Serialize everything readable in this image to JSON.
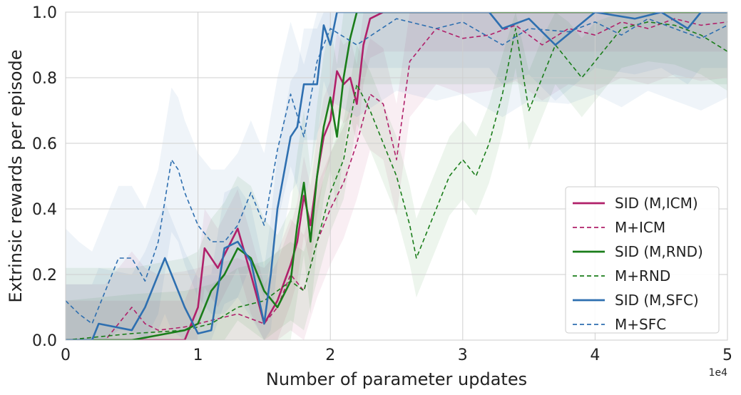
{
  "chart_data": {
    "type": "line",
    "xlabel": "Number of parameter updates",
    "ylabel": "Extrinsic rewards per episode",
    "x_offset_label": "1e4",
    "xlim": [
      0,
      5
    ],
    "ylim": [
      0,
      1.0
    ],
    "xticks": [
      "0",
      "1",
      "2",
      "3",
      "4",
      "5"
    ],
    "yticks": [
      "0.0",
      "0.2",
      "0.4",
      "0.6",
      "0.8",
      "1.0"
    ],
    "grid": true,
    "legend_position": "lower-right",
    "series": [
      {
        "name": "SID (M,ICM)",
        "color": "#b0206a",
        "dash": "solid",
        "x": [
          0,
          0.5,
          0.9,
          1.0,
          1.05,
          1.15,
          1.25,
          1.3,
          1.4,
          1.5,
          1.6,
          1.7,
          1.75,
          1.8,
          1.85,
          1.9,
          1.95,
          2.0,
          2.05,
          2.1,
          2.15,
          2.2,
          2.25,
          2.3,
          2.4,
          5.0
        ],
        "y": [
          0,
          0,
          0,
          0.1,
          0.28,
          0.22,
          0.3,
          0.34,
          0.2,
          0.05,
          0.12,
          0.23,
          0.3,
          0.44,
          0.35,
          0.5,
          0.62,
          0.67,
          0.82,
          0.78,
          0.8,
          0.72,
          0.9,
          0.98,
          1.0,
          1.0
        ]
      },
      {
        "name": "M+ICM",
        "color": "#b0206a",
        "dash": "dashed",
        "x": [
          0,
          0.3,
          0.5,
          0.6,
          0.7,
          0.9,
          1.1,
          1.3,
          1.5,
          1.6,
          1.7,
          1.8,
          1.9,
          2.0,
          2.1,
          2.2,
          2.3,
          2.4,
          2.5,
          2.6,
          2.7,
          2.8,
          3.0,
          3.2,
          3.4,
          3.6,
          3.8,
          4.0,
          4.2,
          4.4,
          4.6,
          4.8,
          5.0
        ],
        "y": [
          0,
          0,
          0.1,
          0.05,
          0.03,
          0.04,
          0.06,
          0.08,
          0.05,
          0.1,
          0.2,
          0.15,
          0.3,
          0.4,
          0.48,
          0.6,
          0.75,
          0.72,
          0.55,
          0.85,
          0.9,
          0.95,
          0.92,
          0.93,
          0.96,
          0.9,
          0.95,
          0.93,
          0.97,
          0.95,
          0.98,
          0.96,
          0.97
        ]
      },
      {
        "name": "SID (M,RND)",
        "color": "#1a7d1a",
        "dash": "solid",
        "x": [
          0,
          0.5,
          0.9,
          1.0,
          1.1,
          1.2,
          1.3,
          1.4,
          1.5,
          1.6,
          1.7,
          1.75,
          1.8,
          1.85,
          1.9,
          1.95,
          2.0,
          2.05,
          2.1,
          2.15,
          2.2,
          2.25,
          2.3,
          2.5,
          5.0
        ],
        "y": [
          0,
          0,
          0.03,
          0.05,
          0.15,
          0.2,
          0.28,
          0.25,
          0.15,
          0.1,
          0.18,
          0.35,
          0.48,
          0.3,
          0.5,
          0.65,
          0.74,
          0.62,
          0.8,
          0.92,
          1.0,
          1.0,
          1.0,
          1.0,
          1.0
        ]
      },
      {
        "name": "M+RND",
        "color": "#1a7d1a",
        "dash": "dashed",
        "x": [
          0,
          0.5,
          0.9,
          1.1,
          1.3,
          1.5,
          1.7,
          1.8,
          1.9,
          2.0,
          2.1,
          2.2,
          2.3,
          2.4,
          2.5,
          2.6,
          2.65,
          2.7,
          2.8,
          2.9,
          3.0,
          3.1,
          3.2,
          3.3,
          3.4,
          3.5,
          3.6,
          3.7,
          3.8,
          3.9,
          4.0,
          4.2,
          4.4,
          4.6,
          4.8,
          5.0
        ],
        "y": [
          0,
          0.02,
          0.03,
          0.05,
          0.1,
          0.12,
          0.18,
          0.15,
          0.3,
          0.45,
          0.55,
          0.78,
          0.7,
          0.6,
          0.5,
          0.35,
          0.25,
          0.3,
          0.4,
          0.5,
          0.55,
          0.5,
          0.6,
          0.75,
          0.95,
          0.7,
          0.8,
          0.9,
          0.85,
          0.8,
          0.85,
          0.95,
          0.97,
          0.96,
          0.93,
          0.88
        ]
      },
      {
        "name": "SID (M,SFC)",
        "color": "#2e6fb0",
        "dash": "solid",
        "x": [
          0,
          0.2,
          0.25,
          0.5,
          0.6,
          0.7,
          0.75,
          0.8,
          0.9,
          1.0,
          1.1,
          1.2,
          1.3,
          1.4,
          1.5,
          1.55,
          1.6,
          1.7,
          1.75,
          1.8,
          1.9,
          1.95,
          2.0,
          2.05,
          2.1,
          2.5,
          3.0,
          3.2,
          3.3,
          3.5,
          3.7,
          4.0,
          4.3,
          4.5,
          4.7,
          4.8,
          5.0
        ],
        "y": [
          0,
          0,
          0.05,
          0.03,
          0.1,
          0.2,
          0.25,
          0.2,
          0.1,
          0.02,
          0.03,
          0.28,
          0.3,
          0.24,
          0.05,
          0.2,
          0.4,
          0.62,
          0.65,
          0.78,
          0.78,
          0.96,
          0.9,
          1.0,
          1.0,
          1.0,
          1.0,
          1.0,
          0.95,
          0.98,
          0.9,
          1.0,
          0.98,
          1.0,
          0.95,
          1.0,
          1.0
        ]
      },
      {
        "name": "M+SFC",
        "color": "#2e6fb0",
        "dash": "dashed",
        "x": [
          0,
          0.1,
          0.2,
          0.3,
          0.4,
          0.5,
          0.6,
          0.7,
          0.8,
          0.85,
          0.9,
          1.0,
          1.1,
          1.2,
          1.3,
          1.4,
          1.5,
          1.6,
          1.7,
          1.8,
          1.9,
          2.0,
          2.2,
          2.5,
          2.8,
          3.0,
          3.3,
          3.5,
          3.8,
          4.0,
          4.2,
          4.4,
          4.6,
          4.8,
          5.0
        ],
        "y": [
          0.12,
          0.08,
          0.05,
          0.15,
          0.25,
          0.25,
          0.18,
          0.3,
          0.55,
          0.52,
          0.45,
          0.35,
          0.3,
          0.3,
          0.35,
          0.45,
          0.35,
          0.58,
          0.75,
          0.62,
          0.85,
          0.95,
          0.9,
          0.98,
          0.95,
          0.97,
          0.9,
          0.95,
          0.94,
          0.97,
          0.93,
          0.98,
          0.95,
          0.92,
          0.96
        ]
      }
    ]
  }
}
